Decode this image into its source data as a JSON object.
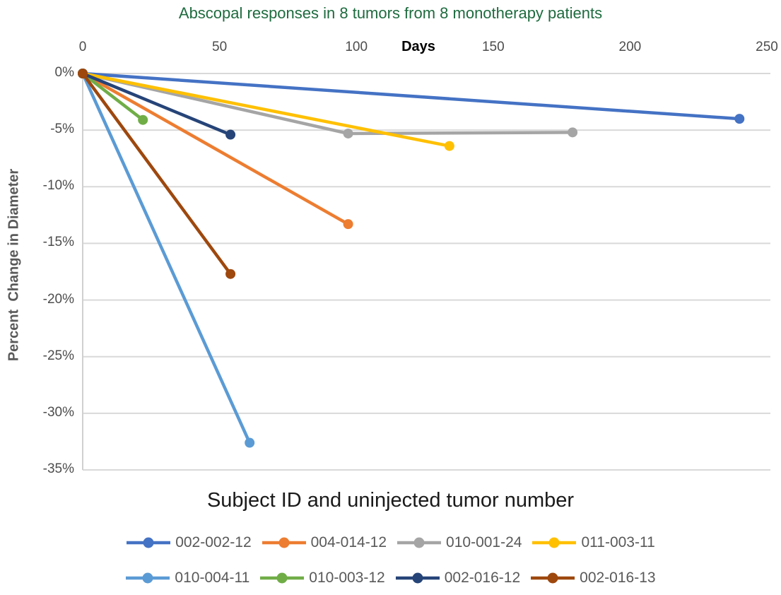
{
  "title": "Abscopal responses in 8 tumors from 8 monotherapy patients",
  "axes": {
    "x_label": "Days",
    "y_label": "Percent  Change in Diameter",
    "x_ticks": [
      0,
      50,
      100,
      150,
      200,
      250
    ],
    "y_ticks": [
      0,
      -5,
      -10,
      -15,
      -20,
      -25,
      -30,
      -35
    ],
    "y_tick_labels": [
      "0%",
      "-5%",
      "-10%",
      "-15%",
      "-20%",
      "-25%",
      "-30%",
      "-35%"
    ]
  },
  "legend": {
    "title": "Subject ID and uninjected tumor number",
    "rows": [
      [
        "002-002-12",
        "004-014-12",
        "010-001-24",
        "011-003-11"
      ],
      [
        "010-004-11",
        "010-003-12",
        "002-016-12",
        "002-016-13"
      ]
    ]
  },
  "colors": {
    "title_green": "#1E6B3F",
    "gridline": "#D9D9D9",
    "axis_line": "#D0D0D0",
    "tick_text": "#4d4d4d",
    "legend_text": "#595959"
  },
  "chart_data": {
    "type": "line",
    "title": "Abscopal responses in 8 tumors from 8 monotherapy patients",
    "xlabel": "Days",
    "ylabel": "Percent Change in Diameter",
    "xlim": [
      0,
      250
    ],
    "ylim": [
      -35,
      0
    ],
    "x_ticks": [
      0,
      50,
      100,
      150,
      200,
      250
    ],
    "y_ticks": [
      0,
      -5,
      -10,
      -15,
      -20,
      -25,
      -30,
      -35
    ],
    "grid": true,
    "legend_position": "bottom",
    "series": [
      {
        "name": "002-002-12",
        "color": "#4472C4",
        "points": [
          [
            0,
            0
          ],
          [
            240,
            -4.0
          ]
        ]
      },
      {
        "name": "004-014-12",
        "color": "#ED7D31",
        "points": [
          [
            0,
            0
          ],
          [
            97,
            -13.3
          ]
        ]
      },
      {
        "name": "010-001-24",
        "color": "#A5A5A5",
        "points": [
          [
            0,
            0
          ],
          [
            97,
            -5.3
          ],
          [
            179,
            -5.2
          ]
        ]
      },
      {
        "name": "011-003-11",
        "color": "#FFC000",
        "points": [
          [
            0,
            0
          ],
          [
            134,
            -6.4
          ]
        ]
      },
      {
        "name": "010-004-11",
        "color": "#5B9BD5",
        "points": [
          [
            0,
            0
          ],
          [
            61,
            -32.6
          ]
        ]
      },
      {
        "name": "010-003-12",
        "color": "#70AD47",
        "points": [
          [
            0,
            0
          ],
          [
            22,
            -4.1
          ]
        ]
      },
      {
        "name": "002-016-12",
        "color": "#264478",
        "points": [
          [
            0,
            0
          ],
          [
            54,
            -5.4
          ]
        ]
      },
      {
        "name": "002-016-13",
        "color": "#9E480E",
        "points": [
          [
            0,
            0
          ],
          [
            54,
            -17.7
          ]
        ]
      }
    ]
  }
}
